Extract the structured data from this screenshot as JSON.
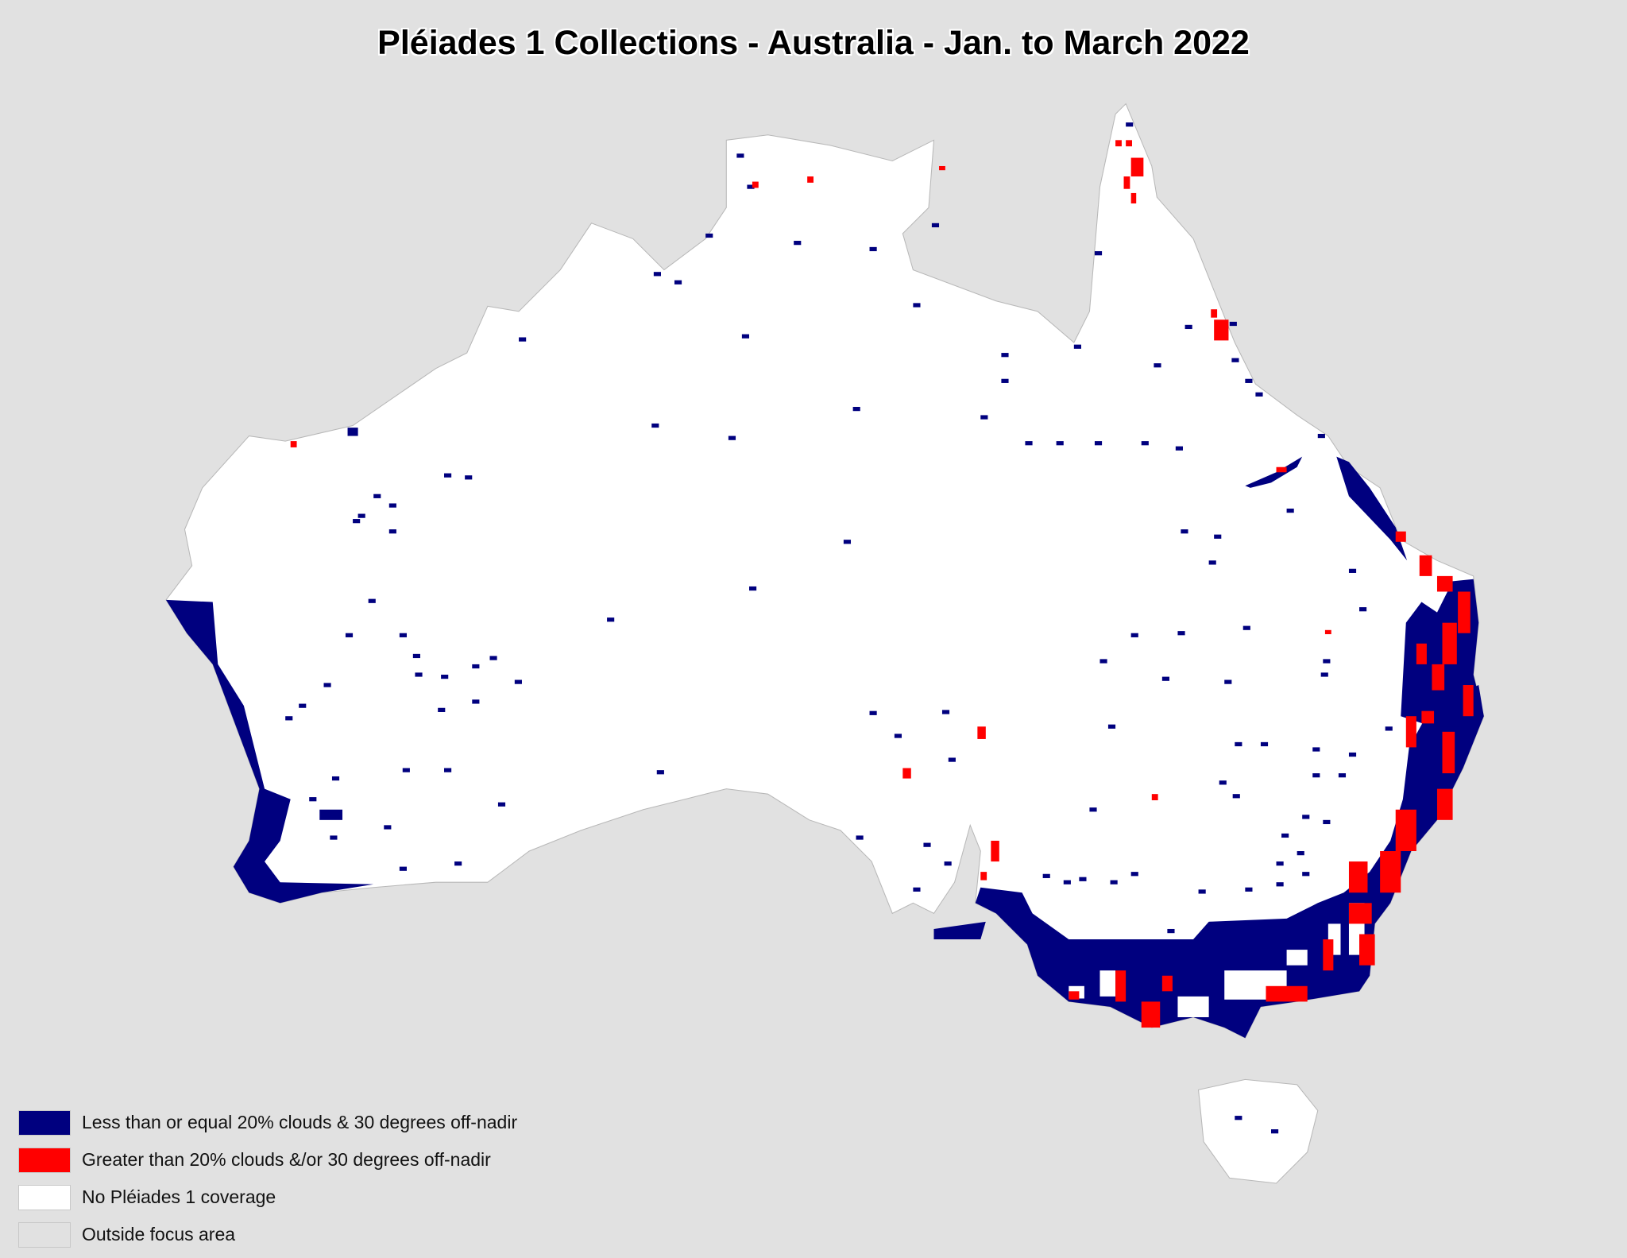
{
  "title": "Pléiades 1 Collections - Australia - Jan. to March 2022",
  "colors": {
    "background": "#e1e1e1",
    "land_no_coverage": "#ffffff",
    "good_collection": "#00007f",
    "poor_collection": "#ff0000"
  },
  "legend": [
    {
      "label": "Less than or equal 20% clouds & 30 degrees off-nadir",
      "color": "#00007f"
    },
    {
      "label": "Greater than 20% clouds &/or 30 degrees off-nadir",
      "color": "#ff0000"
    },
    {
      "label": "No Pléiades 1 coverage",
      "color": "#ffffff"
    },
    {
      "label": "Outside focus area",
      "color": "#e1e1e1"
    }
  ]
}
